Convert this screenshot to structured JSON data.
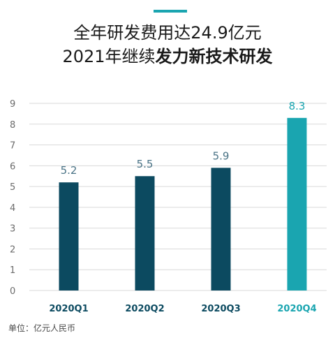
{
  "header": {
    "line1": "全年研发费用达24.9亿元",
    "line2_prefix": "2021年继续",
    "line2_bold": "发力新技术研发"
  },
  "unit_label": "单位：亿元人民币",
  "colors": {
    "accent": "#1aa5b0",
    "bar_dark": "#0c4a60",
    "bar_highlight": "#1aa5b0",
    "grid": "#d9d9d9",
    "axis_text": "#6b6b6b",
    "value_dark": "#4a7386"
  },
  "chart_data": {
    "type": "bar",
    "categories": [
      "2020Q1",
      "2020Q2",
      "2020Q3",
      "2020Q4"
    ],
    "values": [
      5.2,
      5.5,
      5.9,
      8.3
    ],
    "value_labels": [
      "5.2",
      "5.5",
      "5.9",
      "8.3"
    ],
    "highlight_index": 3,
    "ylim": [
      0,
      9
    ],
    "yticks": [
      0,
      1,
      2,
      3,
      4,
      5,
      6,
      7,
      8,
      9
    ],
    "grid": true
  }
}
